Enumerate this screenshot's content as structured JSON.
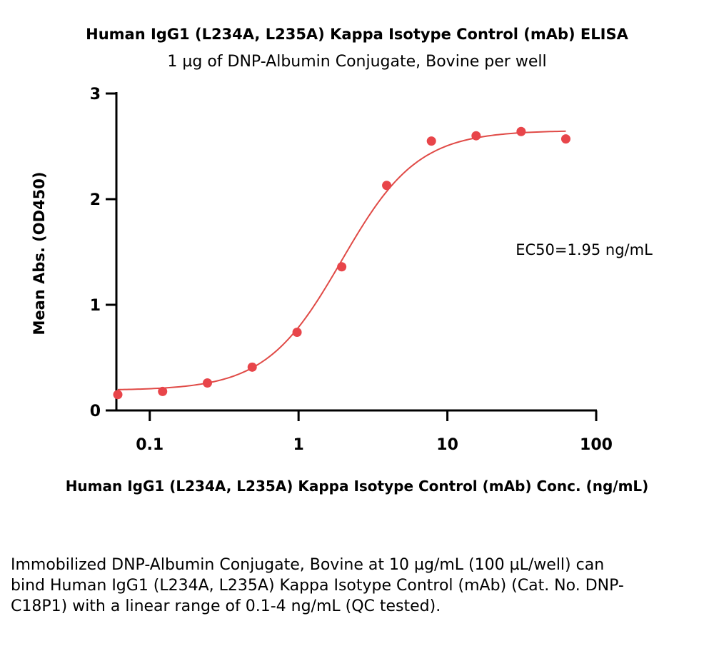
{
  "chart_data": {
    "type": "scatter",
    "title": "Human IgG1 (L234A, L235A) Kappa Isotype Control (mAb) ELISA",
    "subtitle": "1 µg of DNP-Albumin Conjugate, Bovine per well",
    "xlabel": "Human IgG1 (L234A, L235A) Kappa Isotype Control (mAb) Conc. (ng/mL)",
    "ylabel": "Mean Abs. (OD450)",
    "x_scale": "log",
    "xlim": [
      0.05,
      100
    ],
    "ylim": [
      0,
      3
    ],
    "x_ticks": [
      0.1,
      1,
      10,
      100
    ],
    "x_tick_labels": [
      "0.1",
      "1",
      "10",
      "100"
    ],
    "y_ticks": [
      0,
      1,
      2,
      3
    ],
    "y_tick_labels": [
      "0",
      "1",
      "2",
      "3"
    ],
    "grid": false,
    "marker_color": "#e8454a",
    "curve_color": "#e04a46",
    "series": [
      {
        "x": [
          0.061,
          0.122,
          0.244,
          0.488,
          0.977,
          1.95,
          3.91,
          7.81,
          15.6,
          31.3,
          62.5
        ],
        "y": [
          0.15,
          0.18,
          0.26,
          0.41,
          0.74,
          1.36,
          2.13,
          2.55,
          2.6,
          2.64,
          2.57
        ]
      }
    ],
    "fit": {
      "model": "4PL",
      "bottom": 0.19,
      "top": 2.65,
      "ec50": 1.95,
      "hill": 1.7
    },
    "annotation": "EC50=1.95 ng/mL"
  },
  "caption": "Immobilized DNP-Albumin Conjugate, Bovine at 10 µg/mL (100 µL/well) can bind Human IgG1 (L234A, L235A) Kappa Isotype Control (mAb) (Cat. No. DNP-C18P1) with a linear range of 0.1-4 ng/mL (QC tested)."
}
